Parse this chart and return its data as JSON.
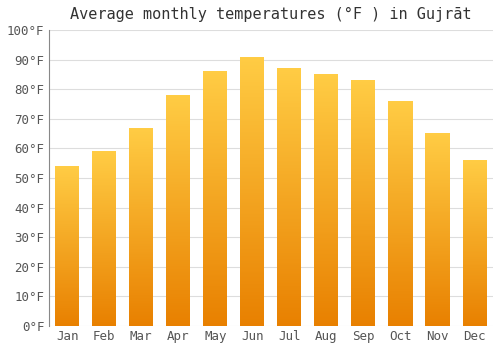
{
  "title": "Average monthly temperatures (°F ) in Gujrāt",
  "months": [
    "Jan",
    "Feb",
    "Mar",
    "Apr",
    "May",
    "Jun",
    "Jul",
    "Aug",
    "Sep",
    "Oct",
    "Nov",
    "Dec"
  ],
  "values": [
    54,
    59,
    67,
    78,
    86,
    91,
    87,
    85,
    83,
    76,
    65,
    56
  ],
  "ylim": [
    0,
    100
  ],
  "yticks": [
    0,
    10,
    20,
    30,
    40,
    50,
    60,
    70,
    80,
    90,
    100
  ],
  "ytick_labels": [
    "0°F",
    "10°F",
    "20°F",
    "30°F",
    "40°F",
    "50°F",
    "60°F",
    "70°F",
    "80°F",
    "90°F",
    "100°F"
  ],
  "bar_color_bottom": "#E88000",
  "bar_color_top": "#FFCC44",
  "background_color": "#ffffff",
  "plot_bg_color": "#ffffff",
  "grid_color": "#dddddd",
  "title_fontsize": 11,
  "tick_fontsize": 9,
  "bar_width": 0.65
}
